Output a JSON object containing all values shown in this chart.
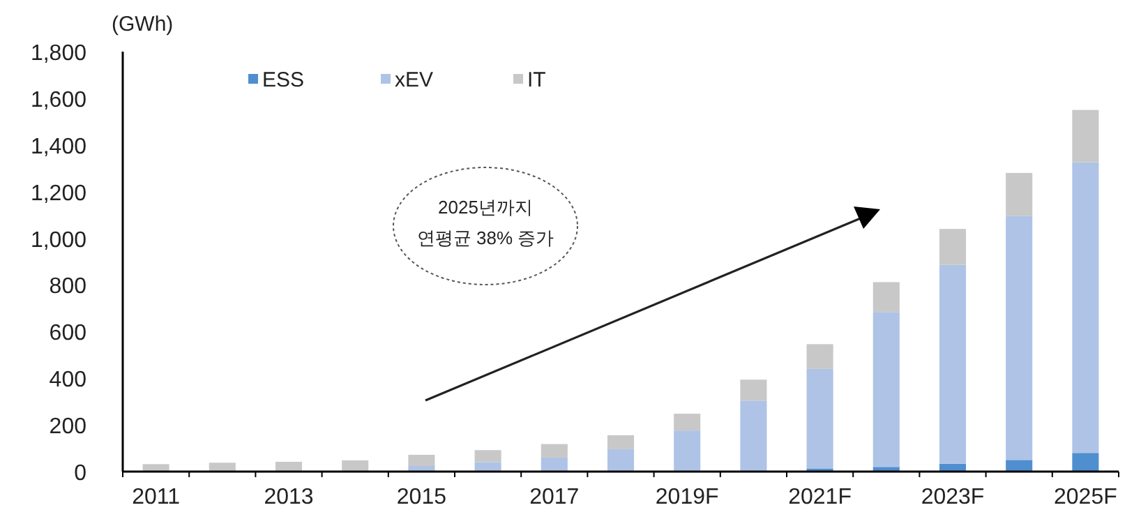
{
  "chart_data": {
    "type": "bar",
    "stacked": true,
    "ylabel": "(GWh)",
    "legend": "top",
    "categories": [
      "2011",
      null,
      "2013",
      null,
      "2015",
      null,
      "2017",
      null,
      "2019F",
      null,
      "2021F",
      null,
      "2023F",
      null,
      "2025F"
    ],
    "series": [
      {
        "name": "ESS",
        "color": "#4f8fcf",
        "values": [
          0,
          0,
          0,
          0,
          0,
          0,
          0,
          1,
          2,
          null,
          12,
          20,
          34,
          50,
          80
        ]
      },
      {
        "name": "xEV",
        "color": "#aec3e6",
        "values": [
          0,
          1,
          2,
          4,
          24,
          40,
          60,
          95,
          174,
          304,
          428,
          664,
          852,
          1046,
          1246
        ]
      },
      {
        "name": "IT",
        "color": "#c8c8c8",
        "values": [
          32,
          37,
          40,
          44,
          48,
          52,
          58,
          60,
          72,
          90,
          106,
          128,
          154,
          184,
          224
        ]
      }
    ],
    "ylim": [
      0,
      1800
    ],
    "yticks": [
      0,
      200,
      400,
      600,
      800,
      {
        "value": 1000,
        "label": "1,000"
      },
      {
        "value": 1200,
        "label": "1,200"
      },
      {
        "value": 1400,
        "label": "1,400"
      },
      {
        "value": 1600,
        "label": "1,600"
      },
      {
        "value": 1800,
        "label": "1,800"
      }
    ],
    "annotations": [
      "2025년까지\n연평균 38% 증가"
    ]
  }
}
